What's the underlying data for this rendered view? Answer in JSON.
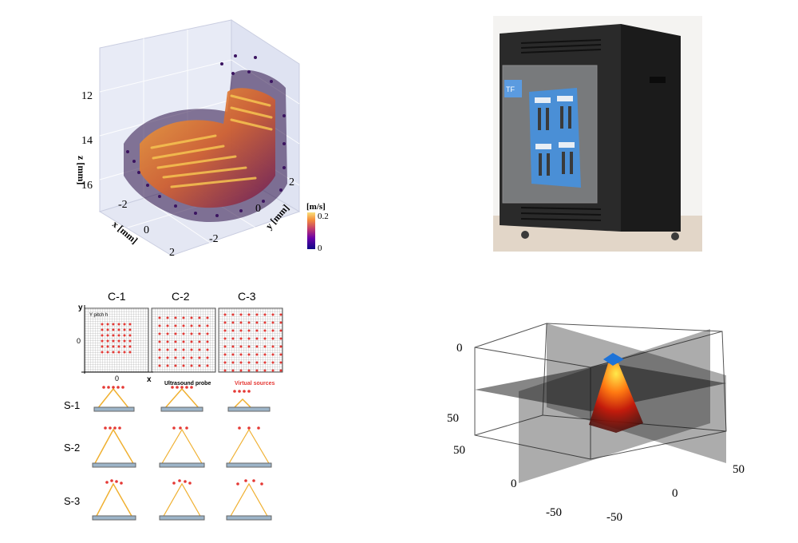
{
  "top_left": {
    "z_label": "z [mm]",
    "x_label": "x [mm]",
    "y_label": "y [mm]",
    "z_ticks": [
      "12",
      "14",
      "16"
    ],
    "x_ticks": [
      "-2",
      "0",
      "2"
    ],
    "y_ticks": [
      "2",
      "0",
      "-2"
    ],
    "colorbar_unit": "[m/s]",
    "colorbar_max": "0.2",
    "colorbar_min": "0"
  },
  "top_right": {
    "panel_sticker": "TF"
  },
  "bottom_left": {
    "col_headers": [
      "C-1",
      "C-2",
      "C-3"
    ],
    "row_headers": [
      "S-1",
      "S-2",
      "S-3"
    ],
    "axis_y": "y",
    "axis_x": "x",
    "tick_zero": "0",
    "pitch_label": "Y pitch h",
    "probe_label": "Ultrasound probe",
    "sources_label": "Virtual sources",
    "colors": {
      "source": "#e53935",
      "beam": "#f0b030",
      "probe": "#9cb4c8"
    }
  },
  "bottom_right": {
    "vertical_ticks": [
      "0",
      "50"
    ],
    "left_depth_ticks": [
      "50",
      "0",
      "-50"
    ],
    "right_depth_ticks": [
      "50",
      "0",
      "-50"
    ]
  }
}
